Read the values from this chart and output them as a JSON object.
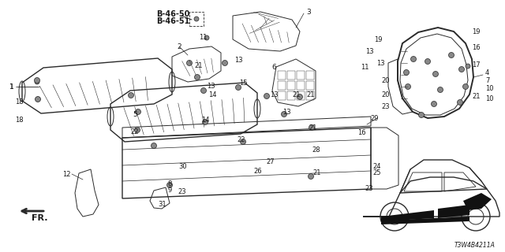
{
  "background_color": "#f5f5f5",
  "line_color": "#2a2a2a",
  "diagram_code": "T3W4B4211A",
  "figsize": [
    6.4,
    3.2
  ],
  "dpi": 100,
  "bold_labels": [
    "B-46-50",
    "B-46-51"
  ],
  "fr_label": "FR."
}
